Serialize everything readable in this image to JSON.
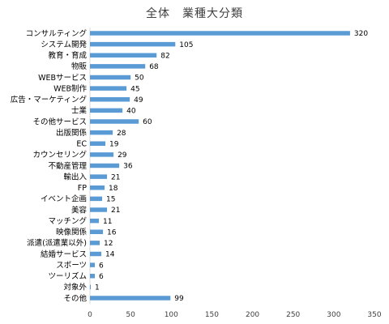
{
  "chart_data": {
    "type": "bar",
    "orientation": "horizontal",
    "title": "全体　業種大分類",
    "categories": [
      "コンサルティング",
      "システム開発",
      "教育・育成",
      "物販",
      "WEBサービス",
      "WEB制作",
      "広告・マーケティング",
      "士業",
      "その他サービス",
      "出版関係",
      "EC",
      "カウンセリング",
      "不動産管理",
      "輸出入",
      "FP",
      "イベント企画",
      "美容",
      "マッチング",
      "映像関係",
      "派遣(派遣業以外)",
      "結婚サービス",
      "スポーツ",
      "ツーリズム",
      "対象外",
      "その他"
    ],
    "values": [
      320,
      105,
      82,
      68,
      50,
      45,
      49,
      40,
      60,
      28,
      19,
      29,
      36,
      21,
      18,
      15,
      21,
      11,
      16,
      12,
      14,
      6,
      6,
      1,
      99
    ],
    "xlim": [
      0,
      350
    ],
    "xticks": [
      0,
      50,
      100,
      150,
      200,
      250,
      300,
      350
    ],
    "bar_color": "#5b9bd5",
    "grid": false,
    "data_labels": true
  }
}
